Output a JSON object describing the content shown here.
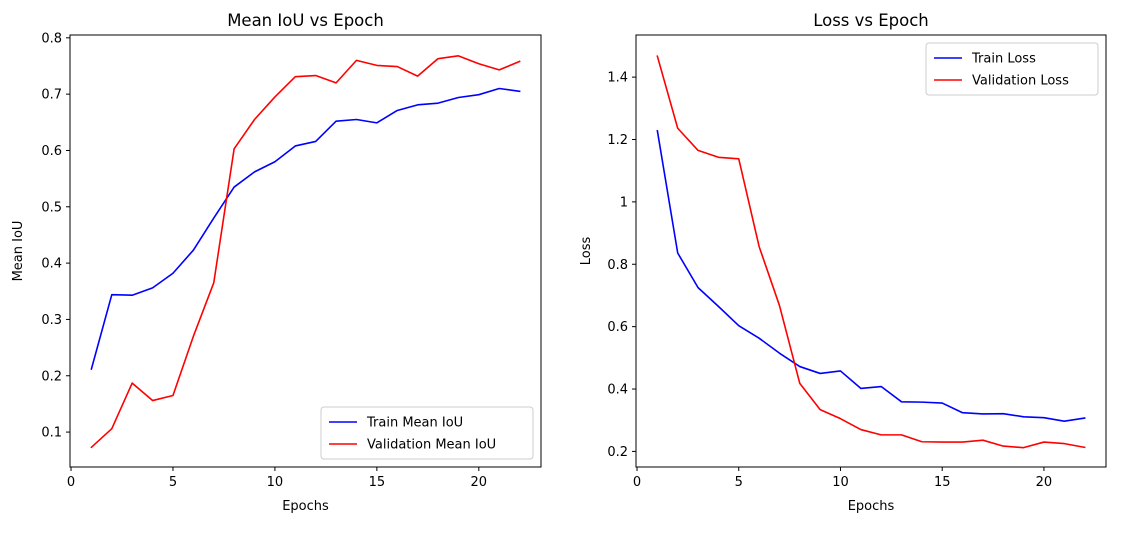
{
  "colors": {
    "train": "#0000ff",
    "validation": "#ff0000",
    "legend_border": "#cccccc"
  },
  "chart_data": [
    {
      "type": "line",
      "title": "Mean IoU vs Epoch",
      "xlabel": "Epochs",
      "ylabel": "Mean IoU",
      "xlim": [
        -0.05,
        23.05
      ],
      "ylim": [
        0.038,
        0.805
      ],
      "xticks": [
        0,
        5,
        10,
        15,
        20
      ],
      "yticks": [
        0.1,
        0.2,
        0.3,
        0.4,
        0.5,
        0.6,
        0.7,
        0.8
      ],
      "grid": false,
      "legend_position": "lower-right",
      "x": [
        1,
        2,
        3,
        4,
        5,
        6,
        7,
        8,
        9,
        10,
        11,
        12,
        13,
        14,
        15,
        16,
        17,
        18,
        19,
        20,
        21,
        22
      ],
      "series": [
        {
          "name": "Train Mean IoU",
          "color": "#0000ff",
          "values": [
            0.212,
            0.344,
            0.343,
            0.356,
            0.382,
            0.423,
            0.48,
            0.535,
            0.562,
            0.58,
            0.608,
            0.616,
            0.652,
            0.655,
            0.649,
            0.671,
            0.681,
            0.684,
            0.694,
            0.699,
            0.71,
            0.705
          ]
        },
        {
          "name": "Validation Mean IoU",
          "color": "#ff0000",
          "values": [
            0.073,
            0.106,
            0.187,
            0.156,
            0.165,
            0.27,
            0.365,
            0.603,
            0.655,
            0.695,
            0.731,
            0.733,
            0.72,
            0.76,
            0.751,
            0.749,
            0.732,
            0.763,
            0.768,
            0.754,
            0.743,
            0.758
          ]
        }
      ]
    },
    {
      "type": "line",
      "title": "Loss vs Epoch",
      "xlabel": "Epochs",
      "ylabel": "Loss",
      "xlim": [
        -0.05,
        23.05
      ],
      "ylim": [
        0.15,
        1.535
      ],
      "xticks": [
        0,
        5,
        10,
        15,
        20
      ],
      "yticks": [
        0.2,
        0.4,
        0.6,
        0.8,
        1.0,
        1.2,
        1.4
      ],
      "grid": false,
      "legend_position": "upper-right",
      "x": [
        1,
        2,
        3,
        4,
        5,
        6,
        7,
        8,
        9,
        10,
        11,
        12,
        13,
        14,
        15,
        16,
        17,
        18,
        19,
        20,
        21,
        22
      ],
      "series": [
        {
          "name": "Train Loss",
          "color": "#0000ff",
          "values": [
            1.228,
            0.836,
            0.725,
            0.665,
            0.603,
            0.563,
            0.515,
            0.472,
            0.45,
            0.458,
            0.402,
            0.408,
            0.359,
            0.358,
            0.355,
            0.324,
            0.32,
            0.321,
            0.311,
            0.308,
            0.297,
            0.307
          ]
        },
        {
          "name": "Validation Loss",
          "color": "#ff0000",
          "values": [
            1.467,
            1.236,
            1.165,
            1.143,
            1.138,
            0.857,
            0.668,
            0.418,
            0.334,
            0.305,
            0.27,
            0.253,
            0.253,
            0.231,
            0.23,
            0.23,
            0.236,
            0.217,
            0.212,
            0.23,
            0.225,
            0.213
          ]
        }
      ]
    }
  ]
}
